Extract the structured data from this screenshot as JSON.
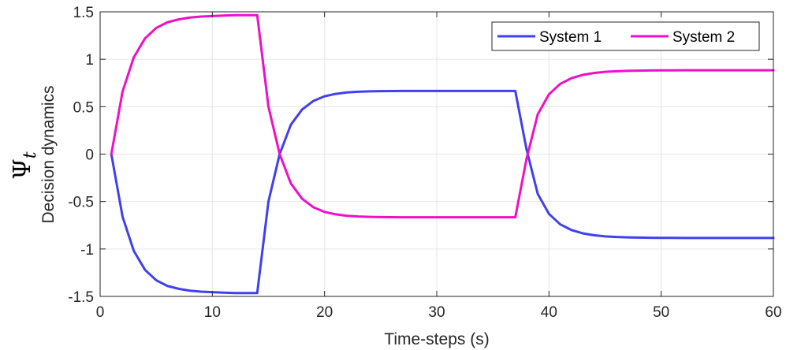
{
  "chart_data": {
    "type": "line",
    "xlabel": "Time-steps (s)",
    "ylabel_symbol": "Ψ",
    "ylabel_subscript": "t",
    "ylabel": "Decision dynamics",
    "xlim": [
      0,
      60
    ],
    "ylim": [
      -1.5,
      1.5
    ],
    "xticks": [
      0,
      10,
      20,
      30,
      40,
      50,
      60
    ],
    "yticks": [
      -1.5,
      -1,
      -0.5,
      0,
      0.5,
      1,
      1.5
    ],
    "xtick_labels": [
      "0",
      "10",
      "20",
      "30",
      "40",
      "50",
      "60"
    ],
    "ytick_labels": [
      "-1.5",
      "-1",
      "-0.5",
      "0",
      "0.5",
      "1",
      "1.5"
    ],
    "grid": true,
    "legend_position": "top-right",
    "series": [
      {
        "name": "System 1",
        "color": "#4040ee",
        "x": [
          1,
          2,
          3,
          4,
          5,
          6,
          7,
          8,
          9,
          10,
          11,
          12,
          13,
          14,
          15,
          16,
          17,
          18,
          19,
          20,
          21,
          22,
          23,
          24,
          25,
          26,
          27,
          28,
          29,
          30,
          31,
          32,
          33,
          34,
          35,
          36,
          37,
          38,
          39,
          40,
          41,
          42,
          43,
          44,
          45,
          46,
          47,
          48,
          49,
          50,
          51,
          52,
          53,
          54,
          55,
          56,
          57,
          58,
          59,
          60
        ],
        "values": [
          0,
          -0.66,
          -1.02,
          -1.22,
          -1.33,
          -1.39,
          -1.42,
          -1.44,
          -1.45,
          -1.455,
          -1.46,
          -1.465,
          -1.465,
          -1.465,
          -0.5,
          0.0,
          0.31,
          0.47,
          0.56,
          0.61,
          0.635,
          0.65,
          0.658,
          0.662,
          0.664,
          0.665,
          0.666,
          0.666,
          0.666,
          0.666,
          0.666,
          0.666,
          0.666,
          0.666,
          0.666,
          0.666,
          0.666,
          0.05,
          -0.42,
          -0.63,
          -0.74,
          -0.8,
          -0.835,
          -0.855,
          -0.867,
          -0.874,
          -0.878,
          -0.88,
          -0.882,
          -0.883,
          -0.883,
          -0.884,
          -0.884,
          -0.884,
          -0.884,
          -0.884,
          -0.884,
          -0.884,
          -0.884,
          -0.884
        ]
      },
      {
        "name": "System 2",
        "color": "#ee10c8",
        "x": [
          1,
          2,
          3,
          4,
          5,
          6,
          7,
          8,
          9,
          10,
          11,
          12,
          13,
          14,
          15,
          16,
          17,
          18,
          19,
          20,
          21,
          22,
          23,
          24,
          25,
          26,
          27,
          28,
          29,
          30,
          31,
          32,
          33,
          34,
          35,
          36,
          37,
          38,
          39,
          40,
          41,
          42,
          43,
          44,
          45,
          46,
          47,
          48,
          49,
          50,
          51,
          52,
          53,
          54,
          55,
          56,
          57,
          58,
          59,
          60
        ],
        "values": [
          0,
          0.66,
          1.02,
          1.22,
          1.33,
          1.39,
          1.42,
          1.44,
          1.45,
          1.455,
          1.46,
          1.465,
          1.465,
          1.465,
          0.5,
          0.0,
          -0.31,
          -0.47,
          -0.56,
          -0.61,
          -0.635,
          -0.65,
          -0.658,
          -0.662,
          -0.664,
          -0.665,
          -0.666,
          -0.666,
          -0.666,
          -0.666,
          -0.666,
          -0.666,
          -0.666,
          -0.666,
          -0.666,
          -0.666,
          -0.666,
          -0.05,
          0.42,
          0.63,
          0.74,
          0.8,
          0.835,
          0.855,
          0.867,
          0.874,
          0.878,
          0.88,
          0.882,
          0.883,
          0.883,
          0.884,
          0.884,
          0.884,
          0.884,
          0.884,
          0.884,
          0.884,
          0.884,
          0.884
        ]
      }
    ]
  }
}
